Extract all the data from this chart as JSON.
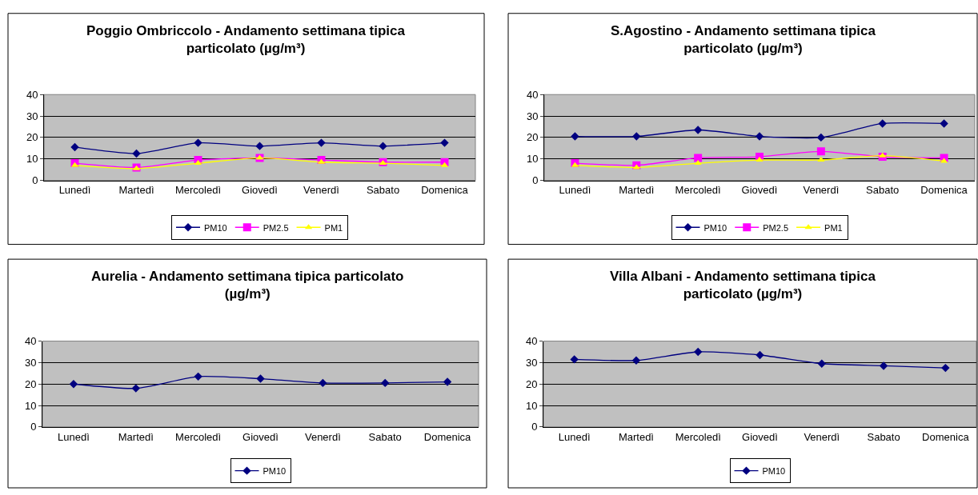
{
  "chart_data": [
    {
      "type": "line",
      "title": "Poggio Ombriccolo - Andamento settimana tipica\nparticolato (µg/m³)",
      "categories": [
        "Lunedì",
        "Martedì",
        "Mercoledì",
        "Giovedì",
        "Venerdì",
        "Sabato",
        "Domenica"
      ],
      "ylim": [
        0,
        40
      ],
      "yticks": [
        0,
        10,
        20,
        30,
        40
      ],
      "grid": "y",
      "legend": "bottom",
      "series": [
        {
          "name": "PM10",
          "color": "#000080",
          "marker": "diamond",
          "values": [
            15.5,
            12.5,
            17.5,
            16,
            17.5,
            16,
            17.5
          ]
        },
        {
          "name": "PM2.5",
          "color": "#ff00ff",
          "marker": "square",
          "values": [
            8,
            6,
            9.5,
            10.5,
            9.5,
            8.5,
            8.5
          ]
        },
        {
          "name": "PM1",
          "color": "#ffff00",
          "marker": "triangle",
          "values": [
            7,
            5.5,
            8,
            10.5,
            8.5,
            8,
            7
          ]
        }
      ]
    },
    {
      "type": "line",
      "title": "S.Agostino - Andamento settimana tipica\nparticolato (µg/m³)",
      "categories": [
        "Lunedì",
        "Martedì",
        "Mercoledì",
        "Giovedì",
        "Venerdì",
        "Sabato",
        "Domenica"
      ],
      "ylim": [
        0,
        40
      ],
      "yticks": [
        0,
        10,
        20,
        30,
        40
      ],
      "grid": "y",
      "legend": "bottom",
      "series": [
        {
          "name": "PM10",
          "color": "#000080",
          "marker": "diamond",
          "values": [
            20.5,
            20.5,
            23.5,
            20.5,
            20,
            26.5,
            26.5
          ]
        },
        {
          "name": "PM2.5",
          "color": "#ff00ff",
          "marker": "square",
          "values": [
            8,
            7,
            10.5,
            11,
            13.5,
            11,
            10.5
          ]
        },
        {
          "name": "PM1",
          "color": "#ffff00",
          "marker": "triangle",
          "values": [
            7,
            6,
            8,
            9.5,
            9.5,
            11.5,
            9
          ]
        }
      ]
    },
    {
      "type": "line",
      "title": "Aurelia - Andamento settimana tipica particolato\n(µg/m³)",
      "categories": [
        "Lunedì",
        "Martedì",
        "Mercoledì",
        "Giovedì",
        "Venerdì",
        "Sabato",
        "Domenica"
      ],
      "ylim": [
        0,
        40
      ],
      "yticks": [
        0,
        10,
        20,
        30,
        40
      ],
      "grid": "y",
      "legend": "bottom",
      "series": [
        {
          "name": "PM10",
          "color": "#000080",
          "marker": "diamond",
          "values": [
            20,
            18,
            23.5,
            22.5,
            20.5,
            20.5,
            21
          ]
        }
      ]
    },
    {
      "type": "line",
      "title": "Villa Albani - Andamento settimana tipica\nparticolato (µg/m³)",
      "categories": [
        "Lunedì",
        "Martedì",
        "Mercoledì",
        "Giovedì",
        "Venerdì",
        "Sabato",
        "Domenica"
      ],
      "ylim": [
        0,
        40
      ],
      "yticks": [
        0,
        10,
        20,
        30,
        40
      ],
      "grid": "y",
      "legend": "bottom",
      "series": [
        {
          "name": "PM10",
          "color": "#000080",
          "marker": "diamond",
          "values": [
            31.5,
            31,
            35,
            33.5,
            29.5,
            28.5,
            27.5
          ]
        }
      ]
    }
  ]
}
